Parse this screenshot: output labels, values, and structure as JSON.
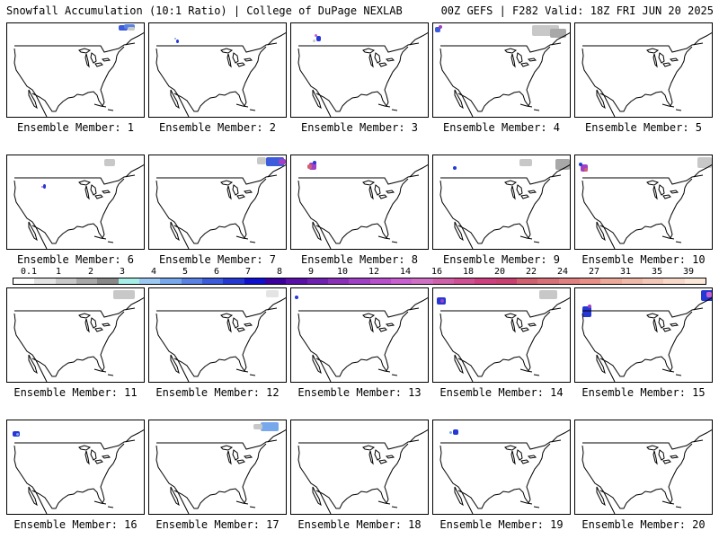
{
  "header": {
    "title_left": "Snowfall Accumulation (10:1 Ratio) | College of DuPage NEXLAB",
    "title_right": "00Z GEFS | F282 Valid: 18Z FRI JUN 20 2025"
  },
  "legend": {
    "tick_labels": [
      "0.1",
      "1",
      "2",
      "3",
      "4",
      "5",
      "6",
      "7",
      "8",
      "9",
      "10",
      "12",
      "14",
      "16",
      "18",
      "20",
      "22",
      "24",
      "27",
      "31",
      "35",
      "39"
    ],
    "colors": [
      "#ffffff",
      "#e4e4e4",
      "#c8c8c8",
      "#a8a8a8",
      "#888888",
      "#a6eee8",
      "#9cc8f4",
      "#78a8ec",
      "#5a82e4",
      "#3c5cdc",
      "#2638d4",
      "#1010d0",
      "#3c00a0",
      "#5a10a8",
      "#7020b0",
      "#8a30b8",
      "#a040c4",
      "#b850cc",
      "#c860d0",
      "#d070c4",
      "#d060a8",
      "#d05094",
      "#cc4080",
      "#c84070",
      "#d06070",
      "#d87078",
      "#e08080",
      "#e89088",
      "#eca898",
      "#f0b8a8",
      "#f4c8b8",
      "#f8d8c8",
      "#fce8d8"
    ]
  },
  "members": [
    {
      "label": "Ensemble Member: 1"
    },
    {
      "label": "Ensemble Member: 2"
    },
    {
      "label": "Ensemble Member: 3"
    },
    {
      "label": "Ensemble Member: 4"
    },
    {
      "label": "Ensemble Member: 5"
    },
    {
      "label": "Ensemble Member: 6"
    },
    {
      "label": "Ensemble Member: 7"
    },
    {
      "label": "Ensemble Member: 8"
    },
    {
      "label": "Ensemble Member: 9"
    },
    {
      "label": "Ensemble Member: 10"
    },
    {
      "label": "Ensemble Member: 11"
    },
    {
      "label": "Ensemble Member: 12"
    },
    {
      "label": "Ensemble Member: 13"
    },
    {
      "label": "Ensemble Member: 14"
    },
    {
      "label": "Ensemble Member: 15"
    },
    {
      "label": "Ensemble Member: 16"
    },
    {
      "label": "Ensemble Member: 17"
    },
    {
      "label": "Ensemble Member: 18"
    },
    {
      "label": "Ensemble Member: 19"
    },
    {
      "label": "Ensemble Member: 20"
    }
  ]
}
